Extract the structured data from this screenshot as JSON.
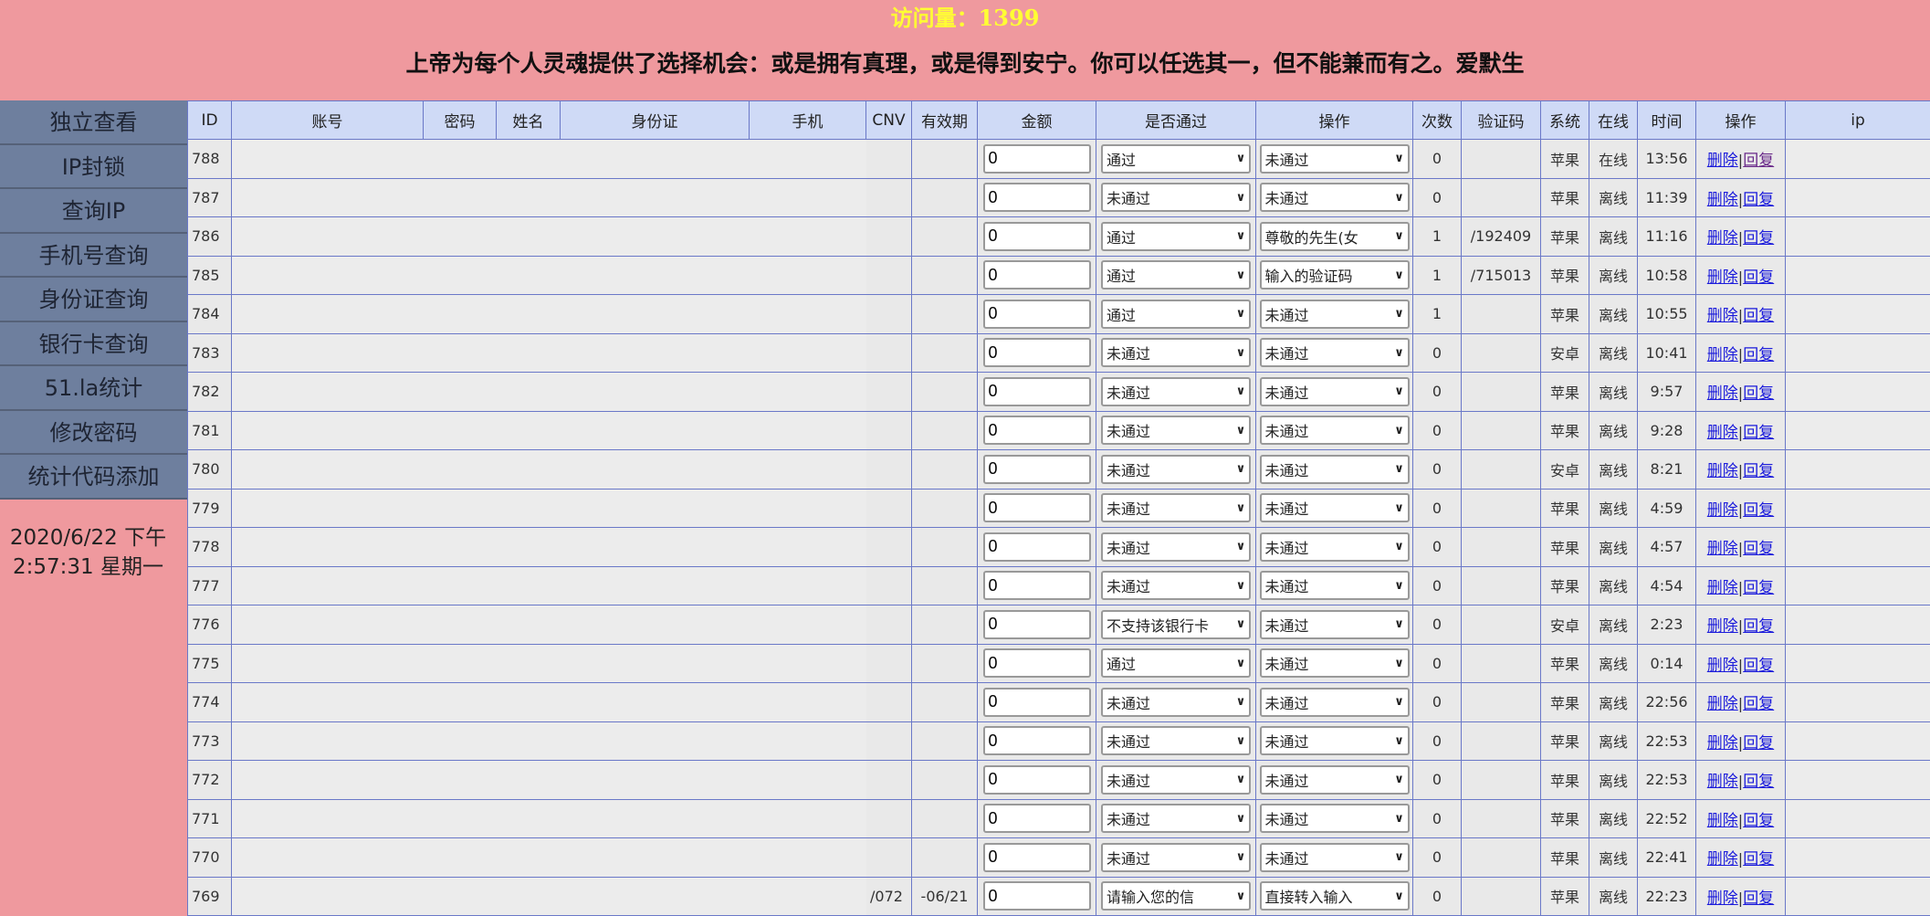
{
  "header": {
    "visits": "访问量：1399",
    "quote": "上帝为每个人灵魂提供了选择机会：或是拥有真理，或是得到安宁。你可以任选其一，但不能兼而有之。爱默生"
  },
  "sidebar": {
    "items": [
      "独立查看",
      "IP封锁",
      "查询IP",
      "手机号查询",
      "身份证查询",
      "银行卡查询",
      "51.la统计",
      "修改密码",
      "统计代码添加"
    ],
    "clock_line1": "2020/6/22 下午",
    "clock_line2": "2:57:31 星期一"
  },
  "table": {
    "columns": [
      "ID",
      "账号",
      "密码",
      "姓名",
      "身份证",
      "手机",
      "CNV",
      "有效期",
      "金额",
      "是否通过",
      "操作",
      "次数",
      "验证码",
      "系统",
      "在线",
      "时间",
      "操作",
      "ip"
    ],
    "delete_label": "删除",
    "reply_label": "回复",
    "separator": "|",
    "rows": [
      {
        "id": "788",
        "cnv": "",
        "exp": "",
        "amount": "0",
        "pass": "通过",
        "op": "未通过",
        "count": "0",
        "code": "",
        "sys": "苹果",
        "online": "在线",
        "time": "13:56"
      },
      {
        "id": "787",
        "cnv": "",
        "exp": "",
        "amount": "0",
        "pass": "未通过",
        "op": "未通过",
        "count": "0",
        "code": "",
        "sys": "苹果",
        "online": "离线",
        "time": "11:39"
      },
      {
        "id": "786",
        "cnv": "",
        "exp": "",
        "amount": "0",
        "pass": "通过",
        "op": "尊敬的先生(女",
        "count": "1",
        "code": "/192409",
        "sys": "苹果",
        "online": "离线",
        "time": "11:16"
      },
      {
        "id": "785",
        "cnv": "",
        "exp": "",
        "amount": "0",
        "pass": "通过",
        "op": "输入的验证码",
        "count": "1",
        "code": "/715013",
        "sys": "苹果",
        "online": "离线",
        "time": "10:58"
      },
      {
        "id": "784",
        "cnv": "",
        "exp": "",
        "amount": "0",
        "pass": "通过",
        "op": "未通过",
        "count": "1",
        "code": "",
        "sys": "苹果",
        "online": "离线",
        "time": "10:55"
      },
      {
        "id": "783",
        "cnv": "",
        "exp": "",
        "amount": "0",
        "pass": "未通过",
        "op": "未通过",
        "count": "0",
        "code": "",
        "sys": "安卓",
        "online": "离线",
        "time": "10:41"
      },
      {
        "id": "782",
        "cnv": "",
        "exp": "",
        "amount": "0",
        "pass": "未通过",
        "op": "未通过",
        "count": "0",
        "code": "",
        "sys": "苹果",
        "online": "离线",
        "time": "9:57"
      },
      {
        "id": "781",
        "cnv": "",
        "exp": "",
        "amount": "0",
        "pass": "未通过",
        "op": "未通过",
        "count": "0",
        "code": "",
        "sys": "苹果",
        "online": "离线",
        "time": "9:28"
      },
      {
        "id": "780",
        "cnv": "",
        "exp": "",
        "amount": "0",
        "pass": "未通过",
        "op": "未通过",
        "count": "0",
        "code": "",
        "sys": "安卓",
        "online": "离线",
        "time": "8:21"
      },
      {
        "id": "779",
        "cnv": "",
        "exp": "",
        "amount": "0",
        "pass": "未通过",
        "op": "未通过",
        "count": "0",
        "code": "",
        "sys": "苹果",
        "online": "离线",
        "time": "4:59"
      },
      {
        "id": "778",
        "cnv": "",
        "exp": "",
        "amount": "0",
        "pass": "未通过",
        "op": "未通过",
        "count": "0",
        "code": "",
        "sys": "苹果",
        "online": "离线",
        "time": "4:57"
      },
      {
        "id": "777",
        "cnv": "",
        "exp": "",
        "amount": "0",
        "pass": "未通过",
        "op": "未通过",
        "count": "0",
        "code": "",
        "sys": "苹果",
        "online": "离线",
        "time": "4:54"
      },
      {
        "id": "776",
        "cnv": "",
        "exp": "",
        "amount": "0",
        "pass": "不支持该银行卡",
        "op": "未通过",
        "count": "0",
        "code": "",
        "sys": "安卓",
        "online": "离线",
        "time": "2:23"
      },
      {
        "id": "775",
        "cnv": "",
        "exp": "",
        "amount": "0",
        "pass": "通过",
        "op": "未通过",
        "count": "0",
        "code": "",
        "sys": "苹果",
        "online": "离线",
        "time": "0:14"
      },
      {
        "id": "774",
        "cnv": "",
        "exp": "",
        "amount": "0",
        "pass": "未通过",
        "op": "未通过",
        "count": "0",
        "code": "",
        "sys": "苹果",
        "online": "离线",
        "time": "22:56"
      },
      {
        "id": "773",
        "cnv": "",
        "exp": "",
        "amount": "0",
        "pass": "未通过",
        "op": "未通过",
        "count": "0",
        "code": "",
        "sys": "苹果",
        "online": "离线",
        "time": "22:53"
      },
      {
        "id": "772",
        "cnv": "",
        "exp": "",
        "amount": "0",
        "pass": "未通过",
        "op": "未通过",
        "count": "0",
        "code": "",
        "sys": "苹果",
        "online": "离线",
        "time": "22:53"
      },
      {
        "id": "771",
        "cnv": "",
        "exp": "",
        "amount": "0",
        "pass": "未通过",
        "op": "未通过",
        "count": "0",
        "code": "",
        "sys": "苹果",
        "online": "离线",
        "time": "22:52"
      },
      {
        "id": "770",
        "cnv": "",
        "exp": "",
        "amount": "0",
        "pass": "未通过",
        "op": "未通过",
        "count": "0",
        "code": "",
        "sys": "苹果",
        "online": "离线",
        "time": "22:41"
      },
      {
        "id": "769",
        "cnv": "/072",
        "exp": "-06/21",
        "amount": "0",
        "pass": "请输入您的信",
        "op": "直接转入输入",
        "count": "0",
        "code": "",
        "sys": "苹果",
        "online": "离线",
        "time": "22:23"
      }
    ]
  },
  "colors": {
    "background": "#ef999e",
    "sidebar": "#6e7f9e",
    "header_row": "#cfdaf6",
    "border": "#6a78c8",
    "online": "#22aa22",
    "visits": "#ffff33"
  }
}
